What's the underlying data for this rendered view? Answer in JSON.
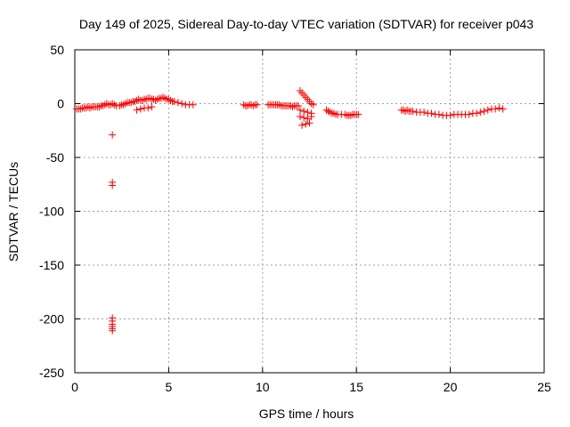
{
  "chart_data": {
    "type": "scatter",
    "title": "Day 149 of 2025, Sidereal Day-to-day VTEC variation (SDTVAR) for receiver p043",
    "xlabel": "GPS time / hours",
    "ylabel": "SDTVAR / TECUs",
    "xlim": [
      0,
      25
    ],
    "ylim": [
      -250,
      50
    ],
    "x_ticks": [
      0,
      5,
      10,
      15,
      20,
      25
    ],
    "y_ticks": [
      50,
      0,
      -50,
      -100,
      -150,
      -200,
      -250
    ],
    "grid": true,
    "marker": "+",
    "series": [
      {
        "name": "SDTVAR",
        "color": "#ff0000",
        "x": [
          0.1,
          0.2,
          0.3,
          0.4,
          0.5,
          0.6,
          0.7,
          0.8,
          0.9,
          1.0,
          1.1,
          1.2,
          1.3,
          1.4,
          1.5,
          1.6,
          1.7,
          1.8,
          1.9,
          2.0,
          2.1,
          2.2,
          2.4,
          2.5,
          2.6,
          2.7,
          2.8,
          2.9,
          3.0,
          3.1,
          3.2,
          3.3,
          3.4,
          3.5,
          3.6,
          3.7,
          3.8,
          3.9,
          4.0,
          4.1,
          4.2,
          4.3,
          4.4,
          4.5,
          4.6,
          4.7,
          4.8,
          4.9,
          5.0,
          5.1,
          5.2,
          5.3,
          5.5,
          5.7,
          5.9,
          6.1,
          6.3,
          3.3,
          3.5,
          3.7,
          3.9,
          4.1,
          9.0,
          9.1,
          9.2,
          9.3,
          9.4,
          9.5,
          9.6,
          9.7,
          10.3,
          10.4,
          10.5,
          10.6,
          10.7,
          10.8,
          10.9,
          11.0,
          11.1,
          11.2,
          11.3,
          11.4,
          11.5,
          11.6,
          11.7,
          11.8,
          11.9,
          12.0,
          12.1,
          12.2,
          12.3,
          12.4,
          12.5,
          12.6,
          12.7,
          12.0,
          12.2,
          12.4,
          12.6,
          12.0,
          12.2,
          12.4,
          12.6,
          12.1,
          12.3,
          12.5,
          13.4,
          13.5,
          13.6,
          13.7,
          13.8,
          13.9,
          14.0,
          14.2,
          14.4,
          14.5,
          14.6,
          14.7,
          14.8,
          14.9,
          15.0,
          15.1,
          17.4,
          17.5,
          17.6,
          17.7,
          17.8,
          17.9,
          18.0,
          18.2,
          18.4,
          18.6,
          18.8,
          19.0,
          19.2,
          19.4,
          19.6,
          19.8,
          20.0,
          20.2,
          20.4,
          20.6,
          20.8,
          21.0,
          21.2,
          21.4,
          21.6,
          21.8,
          22.0,
          22.2,
          22.4,
          22.6,
          22.8,
          2.0,
          2.0,
          2.0,
          2.0,
          2.0,
          2.0,
          2.0,
          2.0,
          2.0
        ],
        "y": [
          -5,
          -5,
          -5,
          -4,
          -4,
          -4,
          -3,
          -4,
          -3,
          -3,
          -3,
          -3,
          -3,
          -2,
          -2,
          -1,
          0,
          -1,
          -1,
          0,
          -1,
          -2,
          -2,
          -1,
          -1,
          0,
          1,
          1,
          1,
          2,
          2,
          3,
          4,
          3,
          3,
          4,
          4,
          5,
          5,
          4,
          4,
          3,
          4,
          5,
          5,
          6,
          5,
          4,
          4,
          3,
          2,
          2,
          1,
          0,
          -1,
          -1,
          -1,
          -6,
          -5,
          -4,
          -4,
          -3,
          -1,
          -2,
          -2,
          -1,
          -1,
          -2,
          -1,
          -1,
          -1,
          -1,
          -1,
          -1,
          -1,
          -1,
          -1,
          -2,
          -2,
          -2,
          -2,
          -2,
          -2,
          -3,
          -2,
          -2,
          -2,
          12,
          10,
          8,
          6,
          4,
          2,
          0,
          -1,
          -6,
          -7,
          -8,
          -9,
          -12,
          -13,
          -14,
          -12,
          -20,
          -19,
          -18,
          -6,
          -7,
          -8,
          -9,
          -9,
          -10,
          -10,
          -10,
          -10,
          -11,
          -11,
          -11,
          -10,
          -10,
          -10,
          -10,
          -6,
          -6,
          -7,
          -6,
          -7,
          -7,
          -7,
          -8,
          -8,
          -8,
          -9,
          -9,
          -10,
          -10,
          -11,
          -11,
          -11,
          -10,
          -10,
          -10,
          -10,
          -10,
          -9,
          -9,
          -8,
          -7,
          -6,
          -5,
          -5,
          -4,
          -5,
          -29,
          -73,
          -76,
          -199,
          -202,
          -205,
          -207,
          -209,
          -211
        ]
      }
    ]
  }
}
